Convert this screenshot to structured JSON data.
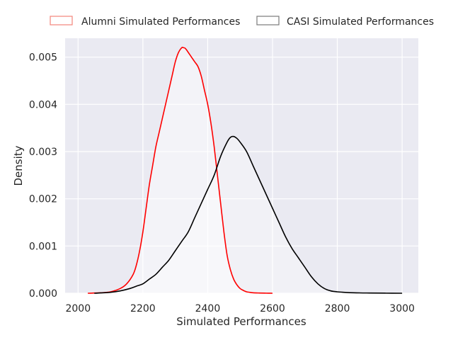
{
  "chart_data": {
    "type": "area",
    "title": "",
    "xlabel": "Simulated Performances",
    "ylabel": "Density",
    "xlim": [
      1960,
      3050
    ],
    "ylim": [
      0,
      0.0054
    ],
    "xticks": [
      2000,
      2200,
      2400,
      2600,
      2800,
      3000
    ],
    "yticks": [
      0.0,
      0.001,
      0.002,
      0.003,
      0.004,
      0.005
    ],
    "xtick_labels": [
      "2000",
      "2200",
      "2400",
      "2600",
      "2800",
      "3000"
    ],
    "ytick_labels": [
      "0.000",
      "0.001",
      "0.002",
      "0.003",
      "0.004",
      "0.005"
    ],
    "grid": true,
    "legend_position": "top-center",
    "background": "#eaeaf2",
    "series": [
      {
        "name": "Alumni Simulated Performances",
        "color": "#ff0000",
        "legend_color": "#f4847a",
        "fill": "rgba(255,255,255,0.45)",
        "x": [
          2030,
          2070,
          2100,
          2130,
          2150,
          2170,
          2180,
          2190,
          2200,
          2210,
          2220,
          2230,
          2240,
          2250,
          2260,
          2270,
          2280,
          2290,
          2300,
          2310,
          2320,
          2325,
          2330,
          2335,
          2340,
          2350,
          2360,
          2370,
          2380,
          2390,
          2400,
          2410,
          2420,
          2430,
          2440,
          2450,
          2460,
          2470,
          2480,
          2490,
          2500,
          2510,
          2520,
          2530,
          2540,
          2560,
          2580,
          2600
        ],
        "y": [
          0.0,
          1e-05,
          3e-05,
          0.0001,
          0.0002,
          0.0004,
          0.0006,
          0.0009,
          0.0013,
          0.0018,
          0.0023,
          0.0027,
          0.0031,
          0.0034,
          0.0037,
          0.004,
          0.0043,
          0.0046,
          0.0049,
          0.0051,
          0.0052,
          0.0052,
          0.00519,
          0.00515,
          0.0051,
          0.005,
          0.0049,
          0.0048,
          0.0046,
          0.0043,
          0.004,
          0.0036,
          0.0031,
          0.0025,
          0.0019,
          0.0013,
          0.0008,
          0.0005,
          0.0003,
          0.00018,
          0.0001,
          6e-05,
          3e-05,
          2e-05,
          1e-05,
          5e-06,
          2e-06,
          0.0
        ]
      },
      {
        "name": "CASI Simulated Performances",
        "color": "#000000",
        "legend_color": "#7a7a7a",
        "fill": "rgba(255,255,255,0.35)",
        "x": [
          2050,
          2100,
          2130,
          2160,
          2180,
          2200,
          2220,
          2240,
          2260,
          2280,
          2300,
          2320,
          2340,
          2360,
          2380,
          2400,
          2420,
          2440,
          2460,
          2470,
          2480,
          2490,
          2500,
          2520,
          2540,
          2560,
          2580,
          2600,
          2620,
          2640,
          2660,
          2680,
          2700,
          2720,
          2740,
          2760,
          2780,
          2800,
          2820,
          2850,
          2900,
          2950,
          3000
        ],
        "y": [
          0.0,
          2e-05,
          5e-05,
          0.0001,
          0.00015,
          0.0002,
          0.0003,
          0.0004,
          0.00055,
          0.0007,
          0.0009,
          0.0011,
          0.0013,
          0.0016,
          0.0019,
          0.0022,
          0.0025,
          0.0029,
          0.0032,
          0.0033,
          0.00332,
          0.00328,
          0.0032,
          0.003,
          0.0027,
          0.0024,
          0.0021,
          0.0018,
          0.0015,
          0.0012,
          0.00095,
          0.00075,
          0.00055,
          0.00035,
          0.0002,
          0.0001,
          5e-05,
          3e-05,
          2e-05,
          1e-05,
          5e-06,
          2e-06,
          0.0
        ]
      }
    ]
  }
}
